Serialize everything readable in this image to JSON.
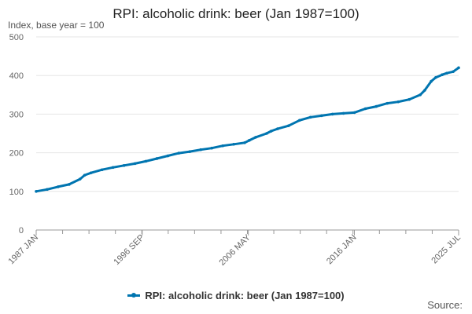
{
  "colors": {
    "series": "#0075b0",
    "grid": "#e6e6e6",
    "axis": "#999999",
    "text": "#666666"
  },
  "footer": {
    "source_label": "Source:"
  },
  "chart_data": {
    "type": "line",
    "title": "RPI: alcoholic drink: beer (Jan 1987=100)",
    "ylabel": "Index, base year = 100",
    "xlabel": "",
    "ylim": [
      0,
      500
    ],
    "y_ticks": [
      0,
      100,
      200,
      300,
      400,
      500
    ],
    "xlim": [
      "1987-01",
      "2025-07"
    ],
    "x_tick_labels": [
      "1987 JAN",
      "1996 SEP",
      "2006 MAY",
      "2016 JAN",
      "2025 JUL"
    ],
    "x_tick_positions": [
      "1987-01",
      "1996-09",
      "2006-05",
      "2016-01",
      "2025-07"
    ],
    "grid": "horizontal",
    "legend_position": "bottom",
    "series": [
      {
        "name": "RPI: alcoholic drink: beer (Jan 1987=100)",
        "x": [
          "1987-01",
          "1988-01",
          "1989-01",
          "1990-01",
          "1991-01",
          "1991-06",
          "1992-01",
          "1993-01",
          "1994-01",
          "1995-01",
          "1996-01",
          "1997-01",
          "1998-01",
          "1999-01",
          "2000-01",
          "2001-01",
          "2002-01",
          "2003-01",
          "2004-01",
          "2005-01",
          "2006-01",
          "2006-06",
          "2007-01",
          "2008-01",
          "2008-06",
          "2009-01",
          "2010-01",
          "2011-01",
          "2012-01",
          "2013-01",
          "2014-01",
          "2015-01",
          "2016-01",
          "2017-01",
          "2018-01",
          "2019-01",
          "2020-01",
          "2021-01",
          "2022-01",
          "2022-06",
          "2023-01",
          "2023-06",
          "2024-01",
          "2024-06",
          "2025-01",
          "2025-07"
        ],
        "values": [
          100,
          105,
          112,
          118,
          132,
          142,
          148,
          156,
          162,
          167,
          172,
          178,
          185,
          192,
          199,
          203,
          208,
          212,
          218,
          222,
          226,
          232,
          240,
          250,
          256,
          262,
          270,
          284,
          292,
          296,
          300,
          302,
          304,
          314,
          320,
          328,
          332,
          338,
          350,
          362,
          385,
          395,
          402,
          406,
          410,
          420
        ]
      }
    ]
  }
}
